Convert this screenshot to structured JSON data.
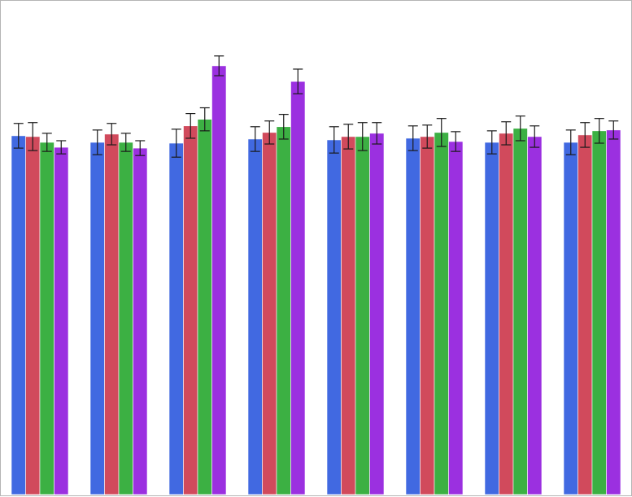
{
  "chart_data": {
    "type": "bar",
    "title": "",
    "xlabel": "",
    "ylabel": "",
    "ylim": [
      0,
      600
    ],
    "grid": false,
    "legend": "none",
    "error_bars": true,
    "categories": [
      "",
      "",
      "",
      "",
      "",
      "",
      "",
      ""
    ],
    "series": [
      {
        "color": "#4169e1",
        "values": [
          436,
          428,
          427,
          432,
          431,
          433,
          428,
          428
        ],
        "errors": [
          15,
          15,
          17,
          15,
          16,
          15,
          14,
          15
        ]
      },
      {
        "color": "#d14a5c",
        "values": [
          435,
          438,
          448,
          440,
          435,
          435,
          439,
          437
        ],
        "errors": [
          17,
          13,
          15,
          14,
          15,
          14,
          14,
          15
        ]
      },
      {
        "color": "#3cb043",
        "values": [
          428,
          428,
          456,
          447,
          435,
          440,
          445,
          442
        ],
        "errors": [
          11,
          11,
          14,
          15,
          17,
          17,
          15,
          15
        ]
      },
      {
        "color": "#9b30e0",
        "values": [
          422,
          421,
          521,
          502,
          439,
          429,
          435,
          443
        ],
        "errors": [
          8,
          9,
          12,
          15,
          13,
          12,
          13,
          11
        ]
      }
    ]
  }
}
